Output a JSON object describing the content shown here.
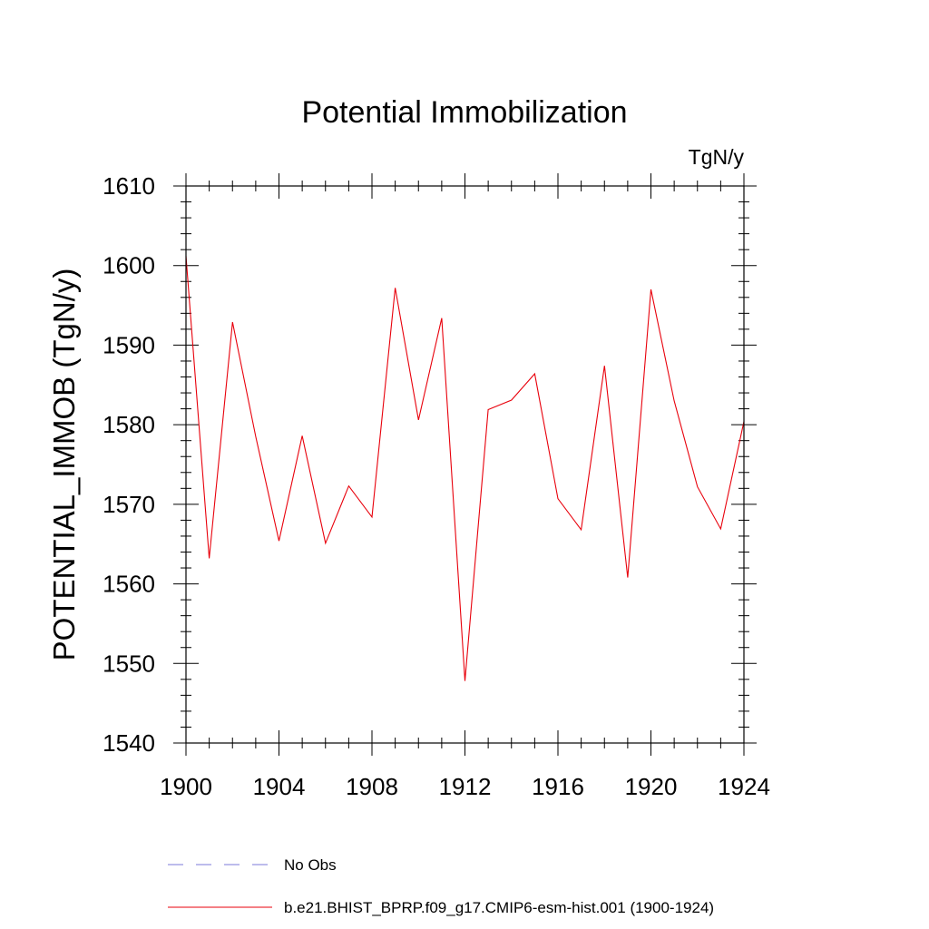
{
  "chart_data": {
    "type": "line",
    "title": "Potential Immobilization",
    "units_label": "TgN/y",
    "ylabel": "POTENTIAL_IMMOB  (TgN/y)",
    "xlabel": "",
    "xlim": [
      1900,
      1924
    ],
    "ylim": [
      1540,
      1610
    ],
    "x_ticks": [
      1900,
      1904,
      1908,
      1912,
      1916,
      1920,
      1924
    ],
    "y_ticks": [
      1540,
      1550,
      1560,
      1570,
      1580,
      1590,
      1600,
      1610
    ],
    "x_minor_step": 1,
    "y_minor_step": 2,
    "series": [
      {
        "name": "b.e21.BHIST_BPRP.f09_g17.CMIP6-esm-hist.001 (1900-1924)",
        "color": "#e8000b",
        "style": "solid",
        "x": [
          1900,
          1901,
          1902,
          1903,
          1904,
          1905,
          1906,
          1907,
          1908,
          1909,
          1910,
          1911,
          1912,
          1913,
          1914,
          1915,
          1916,
          1917,
          1918,
          1919,
          1920,
          1921,
          1922,
          1923,
          1924
        ],
        "values": [
          1601.2,
          1563.2,
          1592.9,
          1578.5,
          1565.4,
          1578.6,
          1565.1,
          1572.3,
          1568.4,
          1597.2,
          1580.6,
          1593.4,
          1547.8,
          1581.9,
          1583.1,
          1586.4,
          1570.7,
          1566.8,
          1587.4,
          1560.8,
          1597.0,
          1583.0,
          1572.2,
          1566.9,
          1580.4
        ]
      }
    ],
    "legend": [
      {
        "label": "No Obs",
        "color": "#7b78d8",
        "style": "dashed"
      },
      {
        "label": "b.e21.BHIST_BPRP.f09_g17.CMIP6-esm-hist.001 (1900-1924)",
        "color": "#e8000b",
        "style": "solid"
      }
    ],
    "legend_position": "bottom"
  }
}
